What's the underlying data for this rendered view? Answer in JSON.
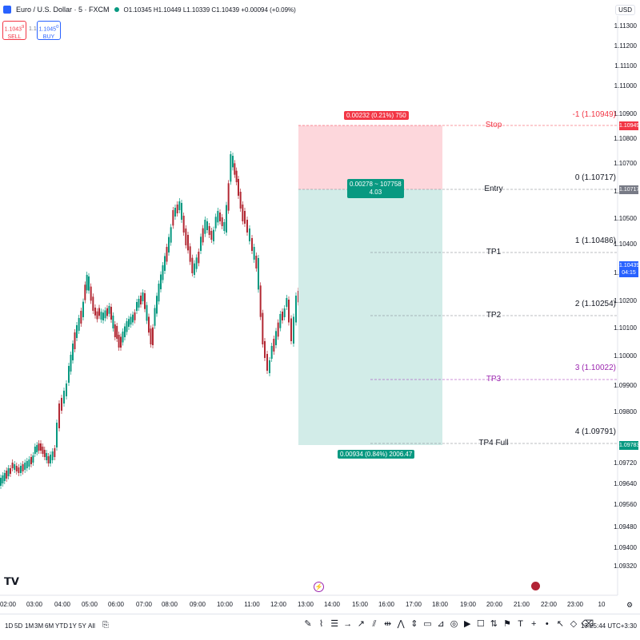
{
  "header": {
    "title": "Euro / U.S. Dollar · 5 · FXCM",
    "ohlc": "O1.10345 H1.10449 L1.10339 C1.10439 +0.00094 (+0.09%)"
  },
  "trade": {
    "sell_price": "1.1043",
    "sell_sup": "9",
    "sell_label": "SELL",
    "spread": "1.1",
    "buy_price": "1.1045",
    "buy_sup": "0",
    "buy_label": "BUY"
  },
  "currency": "USD",
  "price_axis": [
    "1.11300",
    "1.11200",
    "1.11100",
    "1.11000",
    "1.10900",
    "1.10800",
    "1.10700",
    "1.10600",
    "1.10500",
    "1.10400",
    "1.10300",
    "1.10200",
    "1.10100",
    "1.10000",
    "1.09900",
    "1.09800",
    "1.09720",
    "1.09640",
    "1.09560",
    "1.09480",
    "1.09400",
    "1.09320"
  ],
  "time_axis": [
    "02:00",
    "03:00",
    "04:00",
    "05:00",
    "06:00",
    "07:00",
    "08:00",
    "09:00",
    "10:00",
    "11:00",
    "12:00",
    "13:00",
    "14:00",
    "15:00",
    "16:00",
    "17:00",
    "18:00",
    "19:00",
    "20:00",
    "21:00",
    "22:00",
    "23:00",
    "10"
  ],
  "position": {
    "stop_tag": "0.00232 (0.21%) 750",
    "entry_tag_line1": "0.00278 ~ 107758",
    "entry_tag_line2": "4.03",
    "target_tag": "0.00934 (0.84%) 2006.47"
  },
  "levels": [
    {
      "name": "Stop",
      "value": "-1 (1.10949)",
      "color": "#f23645"
    },
    {
      "name": "Entry",
      "value": "0 (1.10717)",
      "color": "#131722"
    },
    {
      "name": "TP1",
      "value": "1 (1.10486)",
      "color": "#131722"
    },
    {
      "name": "TP2",
      "value": "2 (1.10254)",
      "color": "#131722"
    },
    {
      "name": "TP3",
      "value": "3 (1.10022)",
      "color": "#9c27b0"
    },
    {
      "name": "TP4 Full",
      "value": "4 (1.09791)",
      "color": "#131722"
    }
  ],
  "price_tags": {
    "stop": "1.10949",
    "entry": "1.10717",
    "current": "1.10439",
    "countdown": "04:15",
    "target": "1.09783"
  },
  "timeframes": [
    "1D",
    "5D",
    "1M",
    "3M",
    "6M",
    "YTD",
    "1Y",
    "5Y",
    "All"
  ],
  "toolbar_icons": [
    "pencil-icon",
    "brush-icon",
    "fib-icon",
    "arrow-icon",
    "path-icon",
    "channel-icon",
    "ruler-icon",
    "pattern-icon",
    "measure-icon",
    "box-icon",
    "forecast-icon",
    "gann-icon",
    "play-icon",
    "note-icon",
    "position-icon",
    "label-icon",
    "text-icon",
    "crosshair-icon",
    "dot-icon",
    "cursor-icon",
    "magnet-icon",
    "eraser-icon"
  ],
  "clock": "13:25:44 UTC+3:30",
  "colors": {
    "up": "#089981",
    "down": "#b22833",
    "stop_zone": "#fdd7dc",
    "target_zone": "#d2ece8",
    "accent": "#2962ff"
  }
}
